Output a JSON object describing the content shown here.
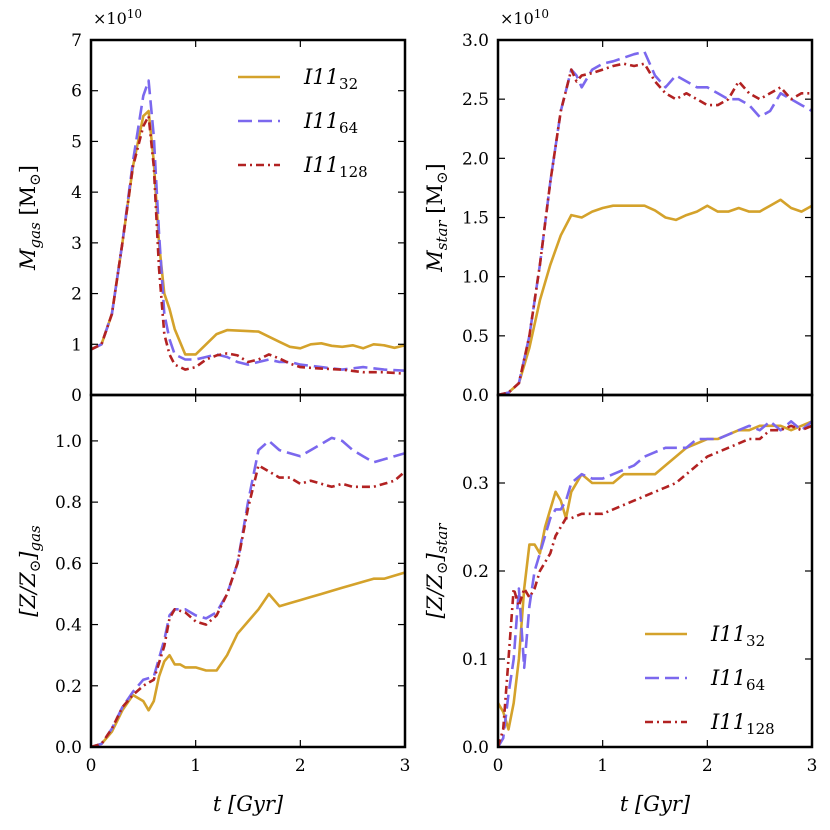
{
  "colors": {
    "I11_32": "#d4a22b",
    "I11_64": "#7b68ee",
    "I11_128": "#b22222"
  },
  "chart_data": [
    {
      "id": "mgas",
      "type": "line",
      "ylabel_main": "M",
      "ylabel_sub": "gas",
      "ylabel_unit": " [M",
      "ylabel_sun": "⊙",
      "ylabel_close": "]",
      "multiplier": "×10",
      "multiplier_exp": "10",
      "xlim": [
        0,
        3
      ],
      "ylim": [
        0,
        7
      ],
      "yticks": [
        "0",
        "1",
        "2",
        "3",
        "4",
        "5",
        "6",
        "7"
      ],
      "ytick_values": [
        0,
        1,
        2,
        3,
        4,
        5,
        6,
        7
      ],
      "xticks": [],
      "xtick_values": [],
      "legend": {
        "position": "top-right"
      },
      "series": [
        {
          "name": "I11",
          "sub": "32",
          "key": "I11_32",
          "dash": "",
          "x": [
            0,
            0.1,
            0.2,
            0.3,
            0.4,
            0.5,
            0.55,
            0.6,
            0.65,
            0.7,
            0.75,
            0.8,
            0.9,
            1.0,
            1.1,
            1.2,
            1.3,
            1.4,
            1.5,
            1.6,
            1.7,
            1.8,
            1.9,
            2.0,
            2.1,
            2.2,
            2.3,
            2.4,
            2.5,
            2.6,
            2.7,
            2.8,
            2.9,
            3.0
          ],
          "y": [
            0.9,
            1.0,
            1.6,
            3.0,
            4.5,
            5.5,
            5.6,
            4.6,
            3.0,
            2.0,
            1.7,
            1.3,
            0.8,
            0.8,
            1.0,
            1.2,
            1.28,
            1.27,
            1.26,
            1.25,
            1.15,
            1.05,
            0.95,
            0.92,
            1.0,
            1.02,
            0.97,
            0.95,
            0.98,
            0.92,
            1.0,
            0.98,
            0.93,
            0.98
          ]
        },
        {
          "name": "I11",
          "sub": "64",
          "key": "I11_64",
          "dash": "14,6",
          "x": [
            0,
            0.1,
            0.2,
            0.3,
            0.4,
            0.5,
            0.55,
            0.6,
            0.65,
            0.7,
            0.75,
            0.8,
            0.9,
            1.0,
            1.1,
            1.2,
            1.3,
            1.4,
            1.5,
            1.6,
            1.7,
            1.8,
            1.9,
            2.0,
            2.2,
            2.4,
            2.6,
            2.8,
            3.0
          ],
          "y": [
            0.9,
            1.0,
            1.6,
            3.0,
            4.6,
            5.9,
            6.2,
            5.1,
            3.2,
            1.6,
            1.1,
            0.8,
            0.7,
            0.7,
            0.75,
            0.8,
            0.75,
            0.65,
            0.6,
            0.65,
            0.7,
            0.65,
            0.65,
            0.6,
            0.55,
            0.5,
            0.55,
            0.5,
            0.48
          ]
        },
        {
          "name": "I11",
          "sub": "128",
          "key": "I11_128",
          "dash": "8,4,2,4",
          "x": [
            0,
            0.1,
            0.2,
            0.3,
            0.4,
            0.5,
            0.55,
            0.6,
            0.65,
            0.7,
            0.75,
            0.8,
            0.9,
            1.0,
            1.1,
            1.2,
            1.3,
            1.4,
            1.5,
            1.6,
            1.7,
            1.8,
            1.9,
            2.0,
            2.2,
            2.4,
            2.6,
            2.8,
            3.0
          ],
          "y": [
            0.9,
            1.0,
            1.6,
            3.0,
            4.5,
            5.3,
            5.5,
            4.5,
            2.5,
            1.2,
            0.8,
            0.6,
            0.5,
            0.55,
            0.7,
            0.78,
            0.82,
            0.78,
            0.65,
            0.7,
            0.8,
            0.72,
            0.62,
            0.55,
            0.52,
            0.5,
            0.45,
            0.45,
            0.42
          ]
        }
      ]
    },
    {
      "id": "mstar",
      "type": "line",
      "ylabel_main": "M",
      "ylabel_sub": "star",
      "ylabel_unit": " [M",
      "ylabel_sun": "⊙",
      "ylabel_close": "]",
      "multiplier": "×10",
      "multiplier_exp": "10",
      "xlim": [
        0,
        3
      ],
      "ylim": [
        0,
        3
      ],
      "yticks": [
        "0.0",
        "0.5",
        "1.0",
        "1.5",
        "2.0",
        "2.5",
        "3.0"
      ],
      "ytick_values": [
        0,
        0.5,
        1.0,
        1.5,
        2.0,
        2.5,
        3.0
      ],
      "xticks": [],
      "xtick_values": [],
      "legend": null,
      "series": [
        {
          "name": "I11",
          "sub": "32",
          "key": "I11_32",
          "dash": "",
          "x": [
            0,
            0.1,
            0.2,
            0.3,
            0.4,
            0.5,
            0.6,
            0.7,
            0.8,
            0.9,
            1.0,
            1.1,
            1.2,
            1.3,
            1.4,
            1.5,
            1.6,
            1.7,
            1.8,
            1.9,
            2.0,
            2.1,
            2.2,
            2.3,
            2.4,
            2.5,
            2.6,
            2.7,
            2.8,
            2.9,
            3.0
          ],
          "y": [
            0,
            0.02,
            0.1,
            0.4,
            0.8,
            1.1,
            1.35,
            1.52,
            1.5,
            1.55,
            1.58,
            1.6,
            1.6,
            1.6,
            1.6,
            1.56,
            1.5,
            1.48,
            1.52,
            1.55,
            1.6,
            1.55,
            1.55,
            1.58,
            1.55,
            1.55,
            1.6,
            1.65,
            1.58,
            1.55,
            1.6
          ]
        },
        {
          "name": "I11",
          "sub": "64",
          "key": "I11_64",
          "dash": "14,6",
          "x": [
            0,
            0.1,
            0.2,
            0.3,
            0.4,
            0.5,
            0.6,
            0.7,
            0.75,
            0.8,
            0.9,
            1.0,
            1.1,
            1.2,
            1.3,
            1.4,
            1.5,
            1.6,
            1.7,
            1.8,
            1.9,
            2.0,
            2.1,
            2.2,
            2.3,
            2.4,
            2.5,
            2.6,
            2.7,
            2.8,
            2.9,
            3.0
          ],
          "y": [
            0,
            0.02,
            0.1,
            0.5,
            1.1,
            1.8,
            2.4,
            2.75,
            2.7,
            2.6,
            2.75,
            2.8,
            2.82,
            2.85,
            2.88,
            2.9,
            2.7,
            2.6,
            2.7,
            2.65,
            2.6,
            2.6,
            2.55,
            2.5,
            2.5,
            2.45,
            2.35,
            2.4,
            2.55,
            2.5,
            2.45,
            2.4
          ]
        },
        {
          "name": "I11",
          "sub": "128",
          "key": "I11_128",
          "dash": "8,4,2,4",
          "x": [
            0,
            0.1,
            0.2,
            0.3,
            0.4,
            0.5,
            0.6,
            0.7,
            0.75,
            0.8,
            0.9,
            1.0,
            1.1,
            1.2,
            1.3,
            1.4,
            1.5,
            1.6,
            1.7,
            1.8,
            1.9,
            2.0,
            2.1,
            2.2,
            2.3,
            2.4,
            2.5,
            2.6,
            2.7,
            2.8,
            2.9,
            3.0
          ],
          "y": [
            0,
            0.02,
            0.1,
            0.5,
            1.1,
            1.8,
            2.4,
            2.75,
            2.65,
            2.7,
            2.72,
            2.75,
            2.78,
            2.8,
            2.78,
            2.8,
            2.65,
            2.55,
            2.5,
            2.55,
            2.5,
            2.45,
            2.45,
            2.5,
            2.65,
            2.55,
            2.5,
            2.55,
            2.6,
            2.5,
            2.55,
            2.55
          ]
        }
      ]
    },
    {
      "id": "zgas",
      "type": "line",
      "ylabel_main": "[Z/Z",
      "ylabel_sun": "⊙",
      "ylabel_close": "]",
      "ylabel_sub": "gas",
      "xlabel": "t [Gyr]",
      "xlim": [
        0,
        3
      ],
      "ylim": [
        0,
        1.15
      ],
      "yticks": [
        "0.0",
        "0.2",
        "0.4",
        "0.6",
        "0.8",
        "1.0"
      ],
      "ytick_values": [
        0,
        0.2,
        0.4,
        0.6,
        0.8,
        1.0
      ],
      "xticks": [
        "0",
        "1",
        "2",
        "3"
      ],
      "xtick_values": [
        0,
        1,
        2,
        3
      ],
      "legend": null,
      "series": [
        {
          "name": "I11",
          "sub": "32",
          "key": "I11_32",
          "dash": "",
          "x": [
            0,
            0.1,
            0.2,
            0.3,
            0.4,
            0.5,
            0.55,
            0.6,
            0.65,
            0.7,
            0.75,
            0.8,
            0.85,
            0.9,
            1.0,
            1.1,
            1.2,
            1.3,
            1.4,
            1.5,
            1.6,
            1.7,
            1.8,
            1.9,
            2.0,
            2.1,
            2.2,
            2.3,
            2.4,
            2.5,
            2.6,
            2.7,
            2.8,
            2.9,
            3.0
          ],
          "y": [
            0,
            0.01,
            0.05,
            0.12,
            0.17,
            0.15,
            0.12,
            0.15,
            0.23,
            0.28,
            0.3,
            0.27,
            0.27,
            0.26,
            0.26,
            0.25,
            0.25,
            0.3,
            0.37,
            0.41,
            0.45,
            0.5,
            0.46,
            0.47,
            0.48,
            0.49,
            0.5,
            0.51,
            0.52,
            0.53,
            0.54,
            0.55,
            0.55,
            0.56,
            0.57
          ]
        },
        {
          "name": "I11",
          "sub": "64",
          "key": "I11_64",
          "dash": "14,6",
          "x": [
            0,
            0.1,
            0.2,
            0.3,
            0.4,
            0.5,
            0.6,
            0.7,
            0.75,
            0.8,
            0.9,
            1.0,
            1.1,
            1.2,
            1.3,
            1.4,
            1.5,
            1.6,
            1.7,
            1.8,
            1.9,
            2.0,
            2.1,
            2.2,
            2.3,
            2.4,
            2.5,
            2.6,
            2.7,
            2.8,
            2.9,
            3.0
          ],
          "y": [
            0,
            0.01,
            0.06,
            0.13,
            0.18,
            0.22,
            0.23,
            0.35,
            0.43,
            0.45,
            0.45,
            0.43,
            0.42,
            0.44,
            0.5,
            0.6,
            0.8,
            0.97,
            1.0,
            0.97,
            0.96,
            0.95,
            0.97,
            0.99,
            1.01,
            1.0,
            0.97,
            0.95,
            0.93,
            0.94,
            0.95,
            0.96
          ]
        },
        {
          "name": "I11",
          "sub": "128",
          "key": "I11_128",
          "dash": "8,4,2,4",
          "x": [
            0,
            0.1,
            0.2,
            0.3,
            0.4,
            0.5,
            0.6,
            0.7,
            0.75,
            0.8,
            0.9,
            1.0,
            1.1,
            1.2,
            1.3,
            1.4,
            1.5,
            1.6,
            1.7,
            1.8,
            1.9,
            2.0,
            2.1,
            2.2,
            2.3,
            2.4,
            2.5,
            2.6,
            2.7,
            2.8,
            2.9,
            3.0
          ],
          "y": [
            0,
            0.01,
            0.06,
            0.13,
            0.17,
            0.2,
            0.22,
            0.33,
            0.42,
            0.45,
            0.44,
            0.41,
            0.4,
            0.43,
            0.5,
            0.6,
            0.78,
            0.92,
            0.9,
            0.88,
            0.88,
            0.86,
            0.87,
            0.86,
            0.85,
            0.86,
            0.85,
            0.85,
            0.85,
            0.86,
            0.87,
            0.9
          ]
        }
      ]
    },
    {
      "id": "zstar",
      "type": "line",
      "ylabel_main": "[Z/Z",
      "ylabel_sun": "⊙",
      "ylabel_close": "]",
      "ylabel_sub": "star",
      "xlabel": "t [Gyr]",
      "xlim": [
        0,
        3
      ],
      "ylim": [
        0,
        0.4
      ],
      "yticks": [
        "0.0",
        "0.1",
        "0.2",
        "0.3"
      ],
      "ytick_values": [
        0,
        0.1,
        0.2,
        0.3
      ],
      "xticks": [
        "0",
        "1",
        "2",
        "3"
      ],
      "xtick_values": [
        0,
        1,
        2,
        3
      ],
      "legend": {
        "position": "bottom-right"
      },
      "series": [
        {
          "name": "I11",
          "sub": "32",
          "key": "I11_32",
          "dash": "",
          "x": [
            0,
            0.05,
            0.1,
            0.15,
            0.2,
            0.25,
            0.3,
            0.35,
            0.4,
            0.45,
            0.5,
            0.55,
            0.6,
            0.65,
            0.7,
            0.8,
            0.9,
            1.0,
            1.1,
            1.2,
            1.3,
            1.4,
            1.5,
            1.6,
            1.7,
            1.8,
            1.9,
            2.0,
            2.1,
            2.2,
            2.3,
            2.4,
            2.5,
            2.6,
            2.7,
            2.8,
            2.9,
            3.0
          ],
          "y": [
            0.05,
            0.04,
            0.02,
            0.05,
            0.1,
            0.18,
            0.23,
            0.23,
            0.22,
            0.25,
            0.27,
            0.29,
            0.28,
            0.26,
            0.29,
            0.31,
            0.3,
            0.3,
            0.3,
            0.31,
            0.31,
            0.31,
            0.31,
            0.32,
            0.33,
            0.34,
            0.345,
            0.35,
            0.35,
            0.355,
            0.36,
            0.36,
            0.365,
            0.365,
            0.365,
            0.36,
            0.365,
            0.37
          ]
        },
        {
          "name": "I11",
          "sub": "64",
          "key": "I11_64",
          "dash": "14,6",
          "x": [
            0,
            0.05,
            0.1,
            0.15,
            0.2,
            0.25,
            0.3,
            0.35,
            0.4,
            0.45,
            0.5,
            0.55,
            0.6,
            0.65,
            0.7,
            0.8,
            0.9,
            1.0,
            1.1,
            1.2,
            1.3,
            1.4,
            1.5,
            1.6,
            1.7,
            1.8,
            1.9,
            2.0,
            2.1,
            2.2,
            2.3,
            2.4,
            2.5,
            2.6,
            2.7,
            2.8,
            2.9,
            3.0
          ],
          "y": [
            0.0,
            0.01,
            0.06,
            0.1,
            0.18,
            0.09,
            0.16,
            0.2,
            0.22,
            0.24,
            0.26,
            0.27,
            0.27,
            0.28,
            0.3,
            0.31,
            0.305,
            0.305,
            0.31,
            0.315,
            0.32,
            0.33,
            0.335,
            0.34,
            0.34,
            0.34,
            0.35,
            0.35,
            0.35,
            0.355,
            0.36,
            0.365,
            0.36,
            0.37,
            0.36,
            0.37,
            0.36,
            0.37
          ]
        },
        {
          "name": "I11",
          "sub": "128",
          "key": "I11_128",
          "dash": "8,4,2,4",
          "x": [
            0,
            0.05,
            0.1,
            0.15,
            0.2,
            0.25,
            0.3,
            0.35,
            0.4,
            0.45,
            0.5,
            0.55,
            0.6,
            0.65,
            0.7,
            0.8,
            0.9,
            1.0,
            1.1,
            1.2,
            1.3,
            1.4,
            1.5,
            1.6,
            1.7,
            1.8,
            1.9,
            2.0,
            2.1,
            2.2,
            2.3,
            2.4,
            2.5,
            2.6,
            2.7,
            2.8,
            2.9,
            3.0
          ],
          "y": [
            0.0,
            0.02,
            0.1,
            0.18,
            0.16,
            0.18,
            0.17,
            0.18,
            0.2,
            0.21,
            0.22,
            0.24,
            0.25,
            0.26,
            0.26,
            0.265,
            0.265,
            0.265,
            0.27,
            0.275,
            0.28,
            0.285,
            0.29,
            0.295,
            0.3,
            0.31,
            0.32,
            0.33,
            0.335,
            0.34,
            0.345,
            0.35,
            0.35,
            0.36,
            0.36,
            0.365,
            0.36,
            0.365
          ]
        }
      ]
    }
  ]
}
